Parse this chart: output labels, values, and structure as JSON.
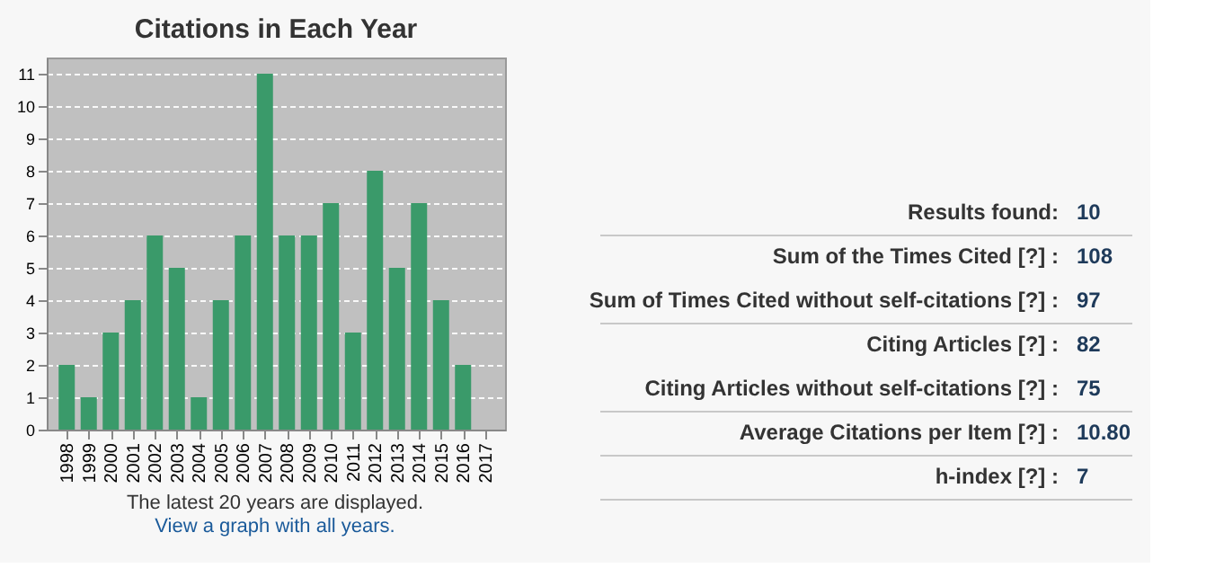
{
  "chart_data": [
    {
      "type": "bar",
      "title": "Citations in Each Year",
      "categories": [
        "1998",
        "1999",
        "2000",
        "2001",
        "2002",
        "2003",
        "2004",
        "2005",
        "2006",
        "2007",
        "2008",
        "2009",
        "2010",
        "2011",
        "2012",
        "2013",
        "2014",
        "2015",
        "2016",
        "2017"
      ],
      "values": [
        2,
        1,
        3,
        4,
        6,
        5,
        1,
        4,
        6,
        11,
        6,
        6,
        7,
        3,
        8,
        5,
        7,
        4,
        2,
        0
      ],
      "color": "#3a9a6a",
      "ylim": [
        0,
        11.5
      ],
      "yticks": [
        0,
        1,
        2,
        3,
        4,
        5,
        6,
        7,
        8,
        9,
        10,
        11
      ],
      "grid": "y",
      "annotations": [
        "The latest 20 years are displayed.",
        "View a graph with all years."
      ]
    },
    {
      "type": "other",
      "annotations": [
        "Results found:",
        "10",
        "Sum of the Times Cited [?] :",
        "108",
        "Sum of Times Cited without self-citations [?] :",
        "97",
        "Citing Articles [?] :",
        "82",
        "Citing Articles without self-citations [?] :",
        "75",
        "Average Citations per Item [?] :",
        "10.80",
        "h-index [?] :",
        "7"
      ]
    }
  ]
}
